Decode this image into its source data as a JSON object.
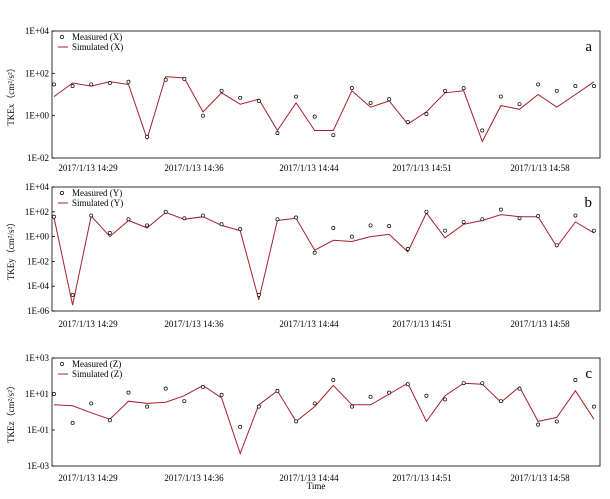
{
  "chart_data": [
    {
      "type": "line",
      "panel_label": "a",
      "ylabel": "TKEx（cm²/s²）",
      "xlabel": "",
      "yscale": "log",
      "ylim": [
        0.01,
        10000
      ],
      "yticks": [
        "1E-02",
        "1E+00",
        "1E+02",
        "1E+04"
      ],
      "xticks": [
        "2017/1/13 14:29",
        "2017/1/13 14:36",
        "2017/1/13 14:44",
        "2017/1/13 14:51",
        "2017/1/13 14:58"
      ],
      "legend": [
        "Measured (X)",
        "Simulated (X)"
      ],
      "series": [
        {
          "name": "Measured (X)",
          "style": "markers",
          "values": [
            30,
            25,
            30,
            35,
            40,
            0.1,
            50,
            55,
            1,
            15,
            7,
            5,
            0.15,
            8,
            0.9,
            0.12,
            20,
            4,
            6,
            0.5,
            1.2,
            15,
            20,
            0.2,
            8,
            3.5,
            30,
            15,
            25,
            25
          ]
        },
        {
          "name": "Simulated (X)",
          "style": "line",
          "values": [
            8,
            35,
            25,
            40,
            30,
            0.08,
            70,
            60,
            1.5,
            12,
            3.5,
            6,
            0.2,
            4,
            0.2,
            0.2,
            15,
            2.5,
            5,
            0.4,
            1.5,
            12,
            15,
            0.06,
            3,
            2,
            10,
            2.5,
            10,
            40
          ]
        }
      ]
    },
    {
      "type": "line",
      "panel_label": "b",
      "ylabel": "TKEy（cm²/s²）",
      "xlabel": "",
      "yscale": "log",
      "ylim": [
        1e-06,
        10000
      ],
      "yticks": [
        "1E-06",
        "1E-04",
        "1E-02",
        "1E+00",
        "1E+02",
        "1E+04"
      ],
      "xticks": [
        "2017/1/13 14:29",
        "2017/1/13 14:36",
        "2017/1/13 14:44",
        "2017/1/13 14:51",
        "2017/1/13 14:58"
      ],
      "legend": [
        "Measured (Y)",
        "Simulated (Y)"
      ],
      "series": [
        {
          "name": "Measured (Y)",
          "style": "markers",
          "values": [
            40,
            2e-05,
            50,
            2,
            25,
            8,
            100,
            30,
            50,
            10,
            4,
            2e-05,
            25,
            35,
            0.05,
            5,
            1,
            8,
            7,
            0.1,
            100,
            3,
            15,
            25,
            150,
            30,
            45,
            0.2,
            50,
            3
          ]
        },
        {
          "name": "Simulated (Y)",
          "style": "line",
          "values": [
            35,
            3e-06,
            45,
            1,
            20,
            5,
            90,
            25,
            40,
            8,
            3,
            8e-06,
            20,
            30,
            0.08,
            0.5,
            0.4,
            1,
            1.5,
            0.06,
            80,
            0.8,
            10,
            20,
            60,
            40,
            40,
            0.15,
            15,
            2
          ]
        }
      ]
    },
    {
      "type": "line",
      "panel_label": "c",
      "ylabel": "TKEz（cm²/s²）",
      "xlabel": "Time",
      "yscale": "log",
      "ylim": [
        0.001,
        1000
      ],
      "yticks": [
        "1E-03",
        "1E-01",
        "1E+01",
        "1E+03"
      ],
      "xticks": [
        "2017/1/13 14:29",
        "2017/1/13 14:36",
        "2017/1/13 14:44",
        "2017/1/13 14:51",
        "2017/1/13 14:58"
      ],
      "legend": [
        "Measured (Z)",
        "Simulated (Z)"
      ],
      "series": [
        {
          "name": "Measured (Z)",
          "style": "markers",
          "values": [
            10,
            0.25,
            3,
            0.35,
            12,
            2,
            20,
            4,
            25,
            9,
            0.15,
            2,
            15,
            0.3,
            3,
            60,
            2,
            7,
            12,
            35,
            8,
            5,
            40,
            40,
            4,
            20,
            0.2,
            0.3,
            60,
            2
          ]
        },
        {
          "name": "Simulated (Z)",
          "style": "line",
          "values": [
            2.5,
            2.2,
            0.9,
            0.4,
            4,
            3,
            3.5,
            8,
            30,
            6,
            0.005,
            2.5,
            15,
            0.3,
            2,
            30,
            2.5,
            2.5,
            10,
            40,
            0.3,
            8,
            40,
            35,
            3.5,
            25,
            0.3,
            0.5,
            15,
            0.4
          ]
        }
      ]
    }
  ]
}
